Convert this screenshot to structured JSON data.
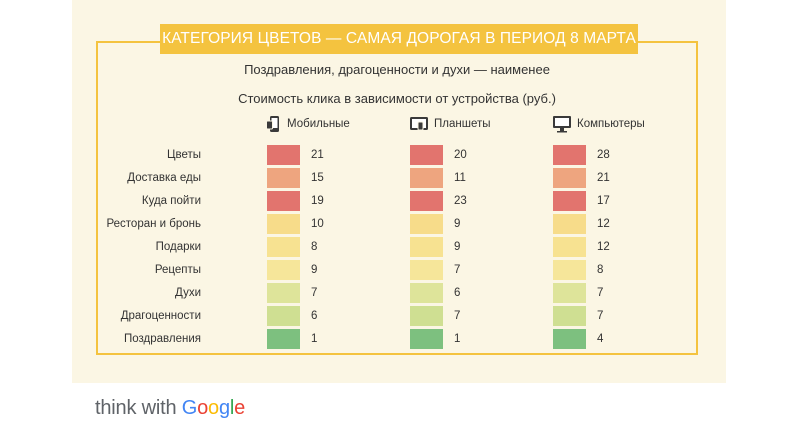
{
  "header": {
    "banner": "КАТЕГОРИЯ ЦВЕТОВ — САМАЯ ДОРОГАЯ В ПЕРИОД 8 МАРТА",
    "subtitle": "Поздравления, драгоценности и духи — наименее"
  },
  "chart_data": {
    "type": "heatmap",
    "title": "Стоимость клика в зависимости от устройства (руб.)",
    "columns": [
      {
        "name": "Мобильные",
        "icon": "mobile-icon"
      },
      {
        "name": "Планшеты",
        "icon": "tablet-icon"
      },
      {
        "name": "Компьютеры",
        "icon": "desktop-icon"
      }
    ],
    "categories": [
      "Цветы",
      "Доставка еды",
      "Куда пойти",
      "Ресторан и бронь",
      "Подарки",
      "Рецепты",
      "Духи",
      "Драгоценности",
      "Поздравления"
    ],
    "values": [
      [
        21,
        20,
        28
      ],
      [
        15,
        11,
        21
      ],
      [
        19,
        23,
        17
      ],
      [
        10,
        9,
        12
      ],
      [
        8,
        9,
        12
      ],
      [
        9,
        7,
        8
      ],
      [
        7,
        6,
        7
      ],
      [
        6,
        7,
        7
      ],
      [
        1,
        1,
        4
      ]
    ],
    "row_colors": [
      "#e2746e",
      "#eea57f",
      "#e2746e",
      "#f7dc8a",
      "#f7e291",
      "#f6e69a",
      "#dee49a",
      "#cfdf92",
      "#7dc07f"
    ]
  },
  "footer": {
    "brand_prefix": "think with ",
    "brand_letters": [
      "G",
      "o",
      "o",
      "g",
      "l",
      "e"
    ]
  }
}
